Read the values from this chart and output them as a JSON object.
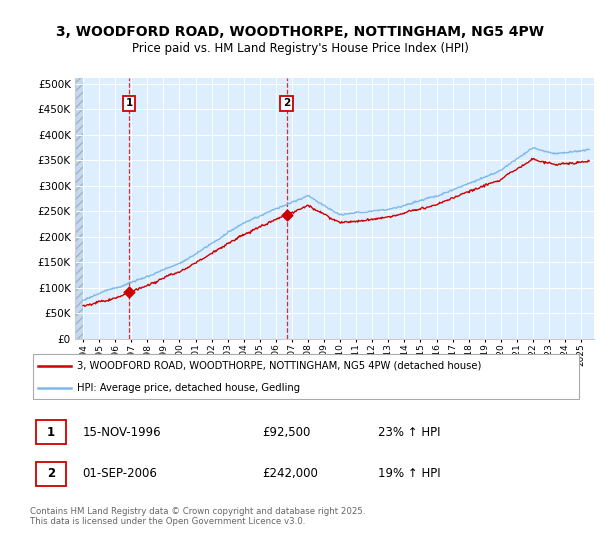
{
  "title_line1": "3, WOODFORD ROAD, WOODTHORPE, NOTTINGHAM, NG5 4PW",
  "title_line2": "Price paid vs. HM Land Registry's House Price Index (HPI)",
  "legend_line1": "3, WOODFORD ROAD, WOODTHORPE, NOTTINGHAM, NG5 4PW (detached house)",
  "legend_line2": "HPI: Average price, detached house, Gedling",
  "footer": "Contains HM Land Registry data © Crown copyright and database right 2025.\nThis data is licensed under the Open Government Licence v3.0.",
  "sale1_date_str": "15-NOV-1996",
  "sale1_price_str": "£92,500",
  "sale1_hpi_str": "23% ↑ HPI",
  "sale1_date_x": 1996.877,
  "sale1_price": 92500,
  "sale2_date_str": "01-SEP-2006",
  "sale2_price_str": "£242,000",
  "sale2_hpi_str": "19% ↑ HPI",
  "sale2_date_x": 2006.667,
  "sale2_price": 242000,
  "hpi_color": "#7db8e8",
  "price_color": "#cc0000",
  "background_color": "#ddeeff",
  "ylim": [
    0,
    510000
  ],
  "yticks": [
    0,
    50000,
    100000,
    150000,
    200000,
    250000,
    300000,
    350000,
    400000,
    450000,
    500000
  ],
  "xlim_start": 1993.5,
  "xlim_end": 2025.8
}
